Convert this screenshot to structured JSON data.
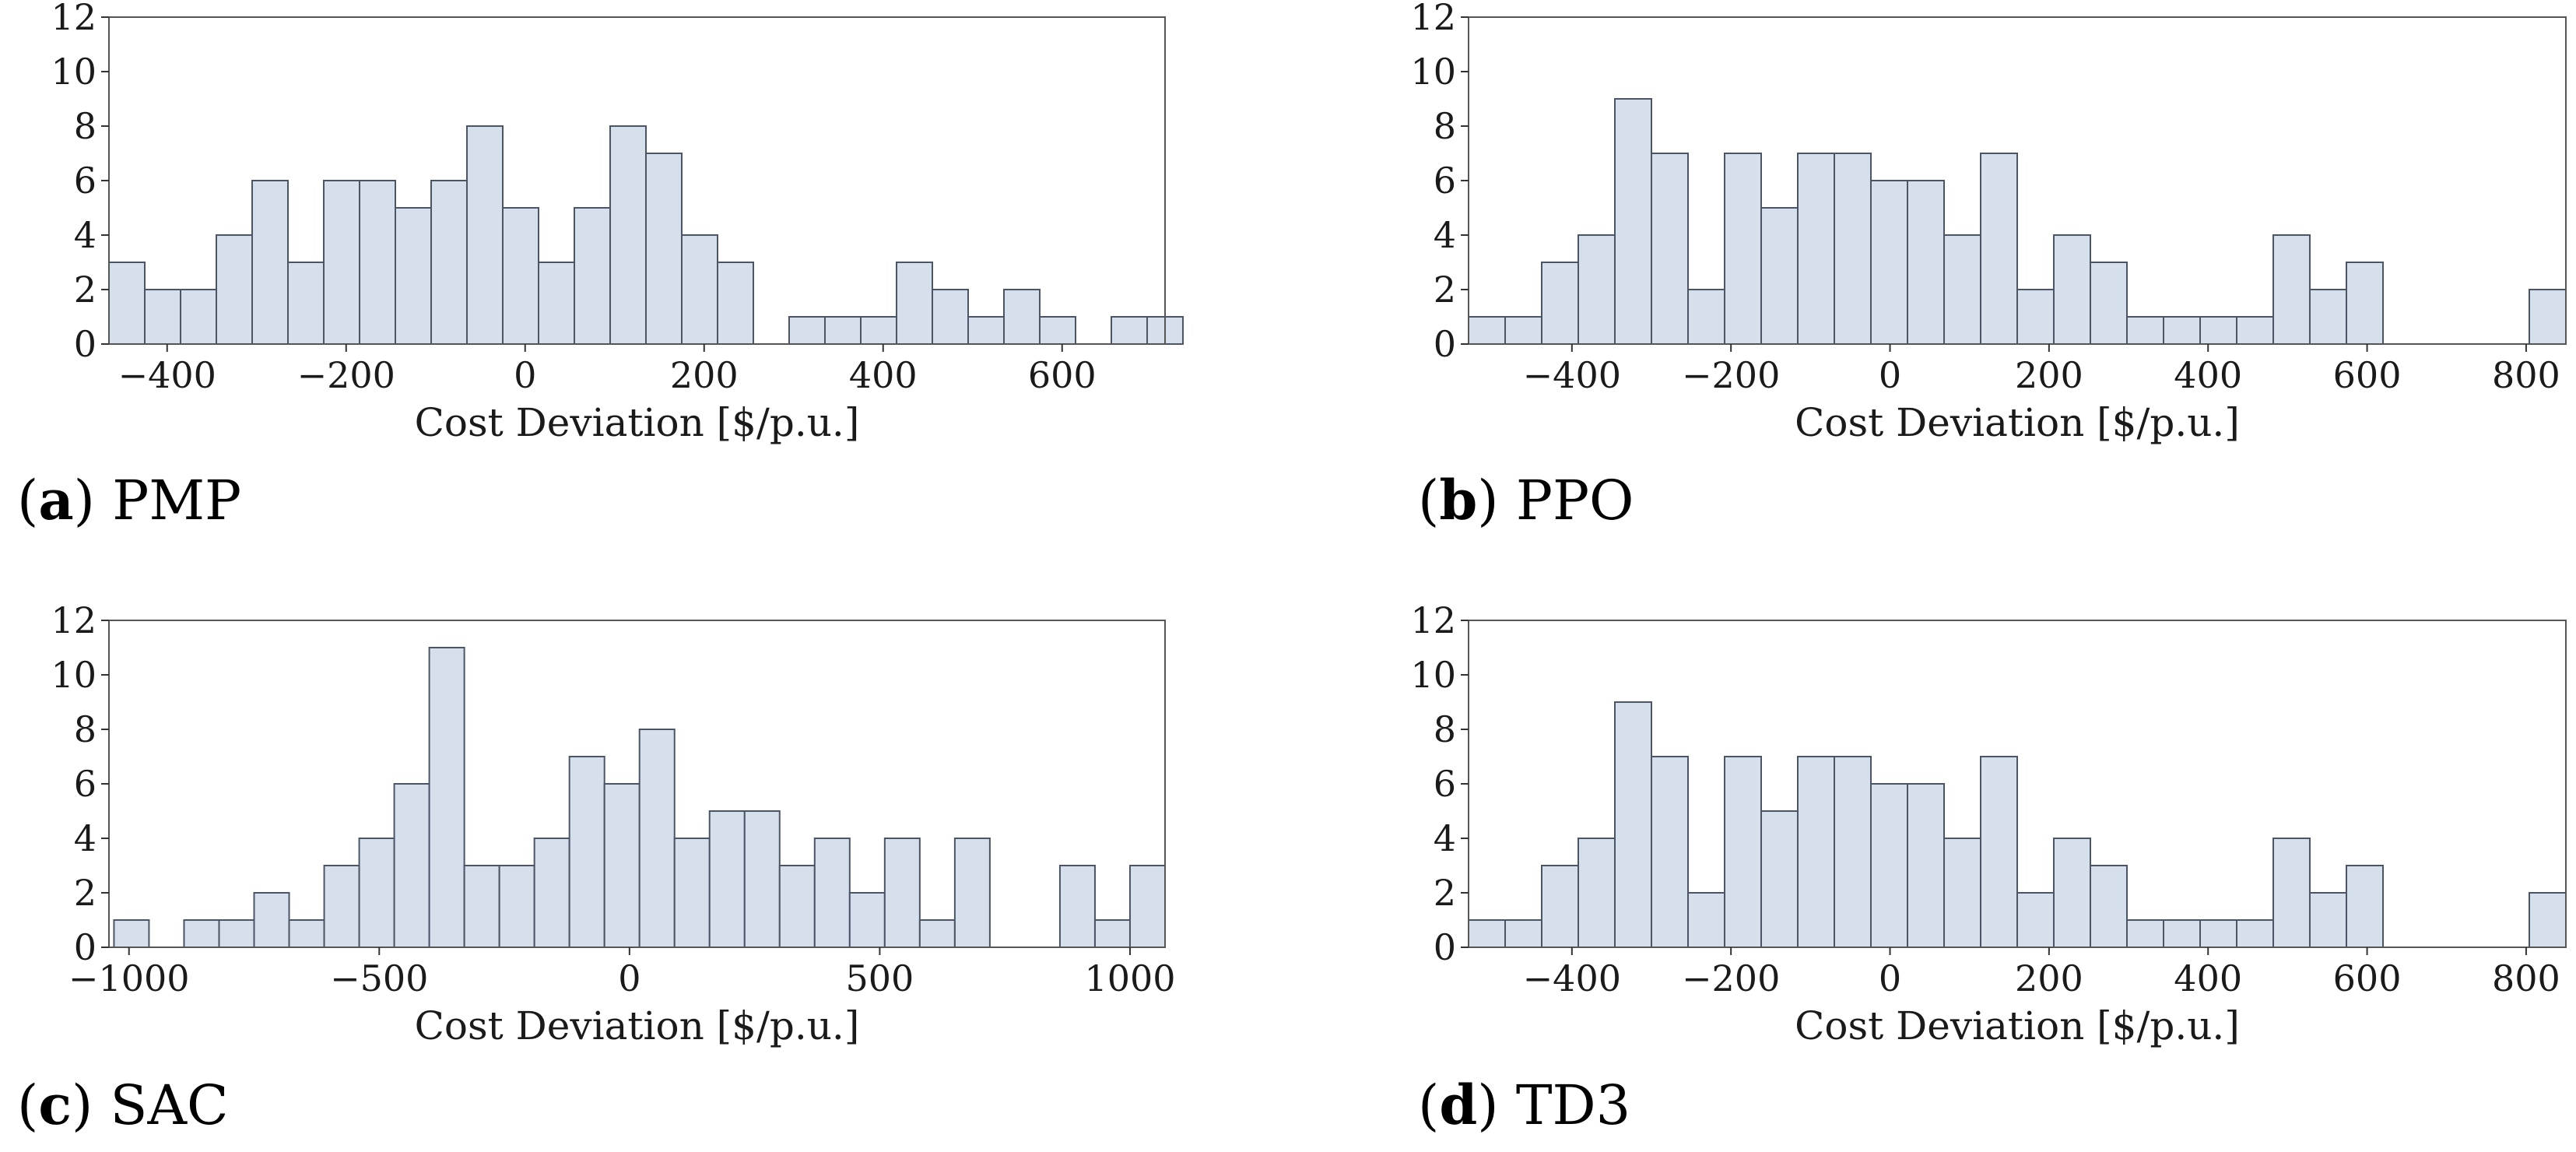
{
  "chart_data": [
    {
      "type": "bar",
      "panel": "a",
      "method": "PMP",
      "xlabel": "Cost Deviation [$/p.u.]",
      "ylabel": "",
      "xlim": [
        -465,
        715
      ],
      "ylim": [
        0,
        12
      ],
      "xticks": [
        -400,
        -200,
        0,
        200,
        400,
        600
      ],
      "xtick_labels": [
        "−400",
        "−200",
        "0",
        "200",
        "400",
        "600"
      ],
      "yticks": [
        0,
        2,
        4,
        6,
        8,
        10,
        12
      ],
      "bin_start": -465,
      "bin_width": 40,
      "values": [
        3,
        2,
        2,
        4,
        6,
        3,
        6,
        6,
        5,
        6,
        8,
        5,
        3,
        5,
        8,
        7,
        4,
        3,
        0,
        1,
        1,
        1,
        3,
        2,
        1,
        2,
        1,
        0,
        1,
        1
      ]
    },
    {
      "type": "bar",
      "panel": "b",
      "method": "PPO",
      "xlabel": "Cost Deviation [$/p.u.]",
      "ylabel": "",
      "xlim": [
        -530,
        850
      ],
      "ylim": [
        0,
        12
      ],
      "xticks": [
        -400,
        -200,
        0,
        200,
        400,
        600,
        800
      ],
      "xtick_labels": [
        "−400",
        "−200",
        "0",
        "200",
        "400",
        "600",
        "800"
      ],
      "yticks": [
        0,
        2,
        4,
        6,
        8,
        10,
        12
      ],
      "bin_start": -530,
      "bin_width": 46,
      "values": [
        1,
        1,
        3,
        4,
        9,
        7,
        2,
        7,
        5,
        7,
        7,
        6,
        6,
        4,
        7,
        2,
        4,
        3,
        1,
        1,
        1,
        1,
        4,
        2,
        3,
        0,
        0,
        0,
        0,
        2
      ]
    },
    {
      "type": "bar",
      "panel": "c",
      "method": "SAC",
      "xlabel": "Cost Deviation [$/p.u.]",
      "ylabel": "",
      "xlim": [
        -1040,
        1070
      ],
      "ylim": [
        0,
        12
      ],
      "xticks": [
        -1000,
        -500,
        0,
        500,
        1000
      ],
      "xtick_labels": [
        "−1000",
        "−500",
        "0",
        "500",
        "1000"
      ],
      "yticks": [
        0,
        2,
        4,
        6,
        8,
        10,
        12
      ],
      "bin_start": -1030,
      "bin_width": 70,
      "values": [
        1,
        0,
        1,
        1,
        2,
        1,
        3,
        4,
        6,
        11,
        3,
        3,
        4,
        7,
        6,
        8,
        4,
        5,
        5,
        3,
        4,
        2,
        4,
        1,
        4,
        0,
        0,
        3,
        1,
        3
      ]
    },
    {
      "type": "bar",
      "panel": "d",
      "method": "TD3",
      "xlabel": "Cost Deviation [$/p.u.]",
      "ylabel": "",
      "xlim": [
        -530,
        850
      ],
      "ylim": [
        0,
        12
      ],
      "xticks": [
        -400,
        -200,
        0,
        200,
        400,
        600,
        800
      ],
      "xtick_labels": [
        "−400",
        "−200",
        "0",
        "200",
        "400",
        "600",
        "800"
      ],
      "yticks": [
        0,
        2,
        4,
        6,
        8,
        10,
        12
      ],
      "bin_start": -530,
      "bin_width": 46,
      "values": [
        1,
        1,
        3,
        4,
        9,
        7,
        2,
        7,
        5,
        7,
        7,
        6,
        6,
        4,
        7,
        2,
        4,
        3,
        1,
        1,
        1,
        1,
        4,
        2,
        3,
        0,
        0,
        0,
        0,
        2
      ]
    }
  ],
  "captions": [
    {
      "letter": "a",
      "open": "(",
      "close": ")",
      "label": "PMP"
    },
    {
      "letter": "b",
      "open": "(",
      "close": ")",
      "label": "PPO"
    },
    {
      "letter": "c",
      "open": "(",
      "close": ")",
      "label": "SAC"
    },
    {
      "letter": "d",
      "open": "(",
      "close": ")",
      "label": "TD3"
    }
  ],
  "colors": {
    "bar_fill": "#d6e0ec",
    "bar_edge": "#4c5566",
    "frame": "#555555"
  }
}
